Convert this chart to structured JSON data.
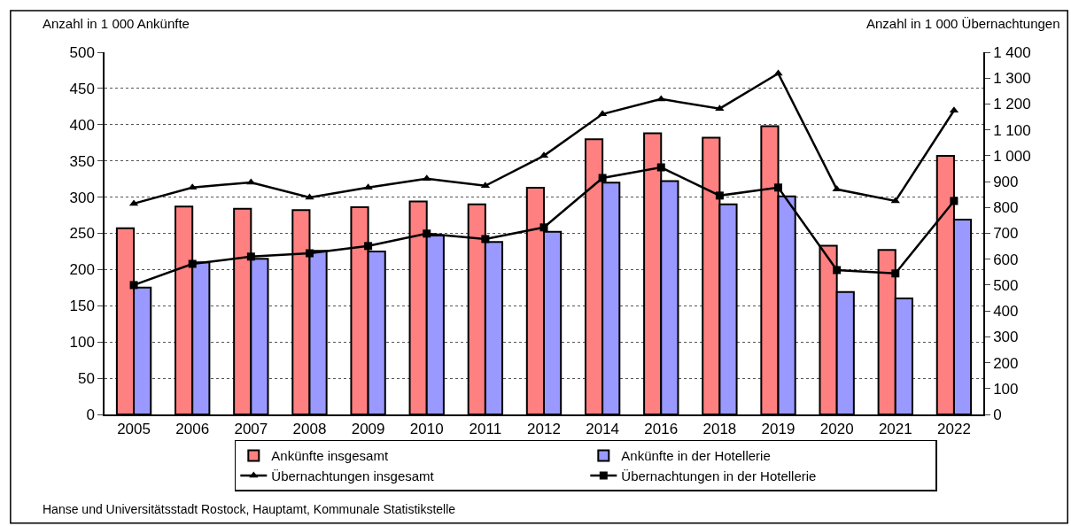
{
  "chart_data": {
    "type": "bar",
    "categories": [
      "2005",
      "2006",
      "2007",
      "2008",
      "2009",
      "2010",
      "2011",
      "2012",
      "2014",
      "2016",
      "2018",
      "2019",
      "2020",
      "2021",
      "2022"
    ],
    "ylabel": "Anzahl in 1 000 Ankünfte",
    "y2label": "Anzahl in 1 000 Übernachtungen",
    "ylim": [
      0,
      500
    ],
    "yticks": [
      0,
      50,
      100,
      150,
      200,
      250,
      300,
      350,
      400,
      450,
      500
    ],
    "y2lim": [
      0,
      1400
    ],
    "y2ticks": [
      {
        "value": 0,
        "label": "0"
      },
      {
        "value": 100,
        "label": "100"
      },
      {
        "value": 200,
        "label": "200"
      },
      {
        "value": 300,
        "label": "300"
      },
      {
        "value": 400,
        "label": "400"
      },
      {
        "value": 500,
        "label": "500"
      },
      {
        "value": 600,
        "label": "600"
      },
      {
        "value": 700,
        "label": "700"
      },
      {
        "value": 800,
        "label": "800"
      },
      {
        "value": 900,
        "label": "900"
      },
      {
        "value": 1000,
        "label": "1 000"
      },
      {
        "value": 1100,
        "label": "1 100"
      },
      {
        "value": 1200,
        "label": "1 200"
      },
      {
        "value": 1300,
        "label": "1 300"
      },
      {
        "value": 1400,
        "label": "1 400"
      }
    ],
    "grid": "y",
    "legend": "bottom",
    "series": [
      {
        "name": "Ankünfte insgesamt",
        "color": "#ff8080",
        "values": [
          257,
          287,
          284,
          282,
          286,
          294,
          290,
          313,
          380,
          388,
          382,
          398,
          233,
          227,
          357
        ]
      },
      {
        "name": "Ankünfte in der Hotellerie",
        "color": "#9999ff",
        "values": [
          175,
          210,
          215,
          226,
          225,
          247,
          238,
          252,
          320,
          322,
          290,
          301,
          169,
          160,
          269
        ]
      },
      {
        "name": "Übernachtungen insgesamt",
        "type": "line",
        "axis": "y2",
        "marker": "triangle",
        "color": "#000000",
        "values": [
          815,
          877,
          897,
          839,
          877,
          911,
          884,
          1000,
          1161,
          1219,
          1182,
          1318,
          870,
          825,
          1175
        ]
      },
      {
        "name": "Übernachtungen in der Hotellerie",
        "type": "line",
        "axis": "y2",
        "marker": "square",
        "color": "#000000",
        "values": [
          500,
          582,
          610,
          623,
          651,
          699,
          678,
          723,
          914,
          955,
          846,
          877,
          558,
          545,
          825
        ]
      }
    ],
    "annotations": [
      "Hanse und Universitätsstadt Rostock, Hauptamt, Kommunale Statistikstelle"
    ]
  }
}
